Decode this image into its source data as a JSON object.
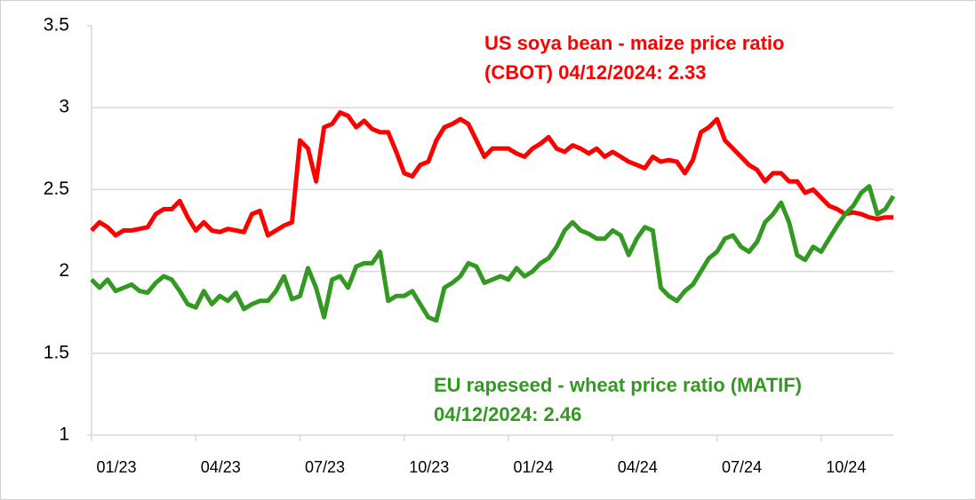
{
  "chart_data": {
    "type": "line",
    "categories": [
      "01/23",
      null,
      null,
      null,
      null,
      null,
      null,
      null,
      null,
      null,
      null,
      null,
      null,
      "04/23",
      null,
      null,
      null,
      null,
      null,
      null,
      null,
      null,
      null,
      null,
      null,
      null,
      "07/23",
      null,
      null,
      null,
      null,
      null,
      null,
      null,
      null,
      null,
      null,
      null,
      null,
      "10/23",
      null,
      null,
      null,
      null,
      null,
      null,
      null,
      null,
      null,
      null,
      null,
      null,
      "01/24",
      null,
      null,
      null,
      null,
      null,
      null,
      null,
      null,
      null,
      null,
      null,
      null,
      "04/24",
      null,
      null,
      null,
      null,
      null,
      null,
      null,
      null,
      null,
      null,
      null,
      null,
      "07/24",
      null,
      null,
      null,
      null,
      null,
      null,
      null,
      null,
      null,
      null,
      null,
      null,
      "10/24",
      null,
      null,
      null,
      null,
      null,
      null,
      null,
      null,
      null
    ],
    "series": [
      {
        "name": "US soya bean - maize price ratio (CBOT)",
        "color": "#ff0000",
        "values": [
          2.25,
          2.3,
          2.27,
          2.22,
          2.25,
          2.25,
          2.26,
          2.27,
          2.35,
          2.38,
          2.38,
          2.43,
          2.33,
          2.25,
          2.3,
          2.25,
          2.24,
          2.26,
          2.25,
          2.24,
          2.35,
          2.37,
          2.22,
          2.25,
          2.28,
          2.3,
          2.8,
          2.75,
          2.55,
          2.88,
          2.9,
          2.97,
          2.95,
          2.88,
          2.92,
          2.87,
          2.85,
          2.85,
          2.73,
          2.6,
          2.58,
          2.65,
          2.67,
          2.8,
          2.88,
          2.9,
          2.93,
          2.9,
          2.8,
          2.7,
          2.75,
          2.75,
          2.75,
          2.72,
          2.7,
          2.75,
          2.78,
          2.82,
          2.75,
          2.73,
          2.77,
          2.75,
          2.72,
          2.75,
          2.7,
          2.73,
          2.7,
          2.67,
          2.65,
          2.63,
          2.7,
          2.67,
          2.68,
          2.67,
          2.6,
          2.68,
          2.85,
          2.88,
          2.93,
          2.8,
          2.75,
          2.7,
          2.65,
          2.62,
          2.55,
          2.6,
          2.6,
          2.55,
          2.55,
          2.48,
          2.5,
          2.45,
          2.4,
          2.38,
          2.35,
          2.36,
          2.35,
          2.33,
          2.32,
          2.33,
          2.33
        ]
      },
      {
        "name": "EU rapeseed - wheat price ratio (MATIF)",
        "color": "#339922",
        "values": [
          1.95,
          1.9,
          1.95,
          1.88,
          1.9,
          1.92,
          1.88,
          1.87,
          1.93,
          1.97,
          1.95,
          1.88,
          1.8,
          1.78,
          1.88,
          1.8,
          1.85,
          1.82,
          1.87,
          1.77,
          1.8,
          1.82,
          1.82,
          1.88,
          1.97,
          1.83,
          1.85,
          2.02,
          1.9,
          1.72,
          1.95,
          1.97,
          1.9,
          2.03,
          2.05,
          2.05,
          2.12,
          1.82,
          1.85,
          1.85,
          1.88,
          1.8,
          1.72,
          1.7,
          1.9,
          1.93,
          1.97,
          2.05,
          2.03,
          1.93,
          1.95,
          1.97,
          1.95,
          2.02,
          1.97,
          2.0,
          2.05,
          2.08,
          2.15,
          2.25,
          2.3,
          2.25,
          2.23,
          2.2,
          2.2,
          2.25,
          2.22,
          2.1,
          2.2,
          2.27,
          2.25,
          1.9,
          1.85,
          1.82,
          1.88,
          1.92,
          2.0,
          2.08,
          2.12,
          2.2,
          2.22,
          2.15,
          2.12,
          2.18,
          2.3,
          2.35,
          2.42,
          2.3,
          2.1,
          2.07,
          2.15,
          2.12,
          2.2,
          2.28,
          2.35,
          2.4,
          2.48,
          2.52,
          2.35,
          2.38,
          2.46
        ]
      }
    ],
    "annotations": [
      {
        "lines": [
          "US soya bean - maize price ratio",
          "(CBOT) 04/12/2024: 2.33"
        ],
        "color": "#ff0000"
      },
      {
        "lines": [
          "EU rapeseed - wheat price ratio (MATIF)",
          "04/12/2024: 2.46"
        ],
        "color": "#339922"
      }
    ],
    "ylim": [
      1,
      3.5
    ],
    "yticks": [
      1,
      1.5,
      2,
      2.5,
      3,
      3.5
    ],
    "grid": true
  }
}
